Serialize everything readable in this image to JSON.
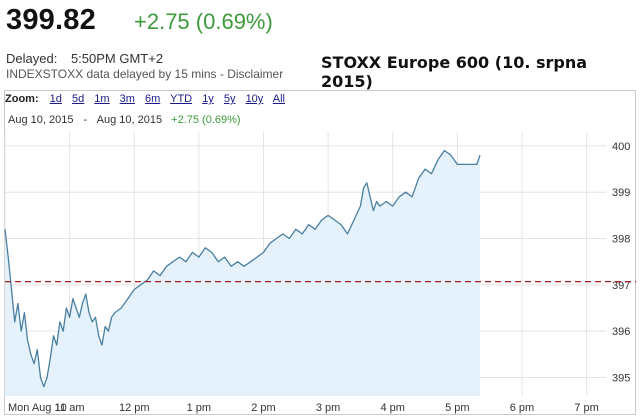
{
  "quote": {
    "price": "399.82",
    "change": "+2.75 (0.69%)",
    "delayed_label": "Delayed:",
    "delayed_time": "5:50PM GMT+2",
    "source_note": "INDEXSTOXX data delayed by 15 mins - Disclaimer"
  },
  "caption": "STOXX Europe 600 (10. srpna 2015)",
  "zoom": {
    "label": "Zoom:",
    "options": [
      "1d",
      "5d",
      "1m",
      "3m",
      "6m",
      "YTD",
      "1y",
      "5y",
      "10y",
      "All"
    ]
  },
  "range": {
    "start": "Aug 10, 2015",
    "separator": "-",
    "end": "Aug 10, 2015",
    "change": "+2.75 (0.69%)"
  },
  "colors": {
    "line": "#4a7fa0",
    "fill": "#e6f2fb",
    "positive": "#3c9a3c",
    "reference": "#a02020",
    "grid": "#e4e4e4"
  },
  "chart_data": {
    "type": "area",
    "x_ticks": [
      "Mon Aug 10",
      "11 am",
      "12 pm",
      "1 pm",
      "2 pm",
      "3 pm",
      "4 pm",
      "5 pm",
      "6 pm",
      "7 pm"
    ],
    "y_ticks": [
      395,
      396,
      397,
      398,
      399,
      400
    ],
    "ylim": [
      394.6,
      400.3
    ],
    "x_range_hours": [
      10,
      19.3
    ],
    "reference_line": 397.07,
    "grid": true,
    "y_axis_position": "right",
    "series": [
      {
        "x": [
          10.0,
          10.05,
          10.1,
          10.15,
          10.2,
          10.25,
          10.3,
          10.35,
          10.4,
          10.45,
          10.5,
          10.55,
          10.6,
          10.65,
          10.7,
          10.75,
          10.8,
          10.85,
          10.9,
          10.95,
          11.0,
          11.05,
          11.1,
          11.15,
          11.2,
          11.25,
          11.3,
          11.35,
          11.4,
          11.45,
          11.5,
          11.55,
          11.6,
          11.65,
          11.7,
          11.8,
          11.9,
          12.0,
          12.1,
          12.2,
          12.3,
          12.4,
          12.5,
          12.6,
          12.7,
          12.8,
          12.9,
          13.0,
          13.1,
          13.2,
          13.3,
          13.4,
          13.5,
          13.6,
          13.7,
          13.8,
          13.9,
          14.0,
          14.1,
          14.2,
          14.3,
          14.4,
          14.5,
          14.6,
          14.7,
          14.8,
          14.9,
          15.0,
          15.1,
          15.2,
          15.3,
          15.4,
          15.5,
          15.55,
          15.6,
          15.65,
          15.7,
          15.75,
          15.8,
          15.9,
          16.0,
          16.1,
          16.2,
          16.3,
          16.4,
          16.5,
          16.6,
          16.7,
          16.8,
          16.9,
          17.0,
          17.1,
          17.2,
          17.3,
          17.35
        ],
        "y": [
          398.2,
          397.6,
          396.9,
          396.2,
          396.6,
          396.0,
          396.4,
          395.8,
          395.5,
          395.3,
          395.6,
          395.0,
          394.8,
          395.0,
          395.4,
          395.9,
          395.7,
          396.2,
          396.0,
          396.5,
          396.3,
          396.7,
          396.5,
          396.3,
          396.6,
          396.8,
          396.4,
          396.2,
          396.3,
          395.9,
          395.7,
          396.1,
          396.0,
          396.3,
          396.4,
          396.5,
          396.7,
          396.9,
          397.0,
          397.1,
          397.3,
          397.2,
          397.4,
          397.5,
          397.6,
          397.5,
          397.7,
          397.6,
          397.8,
          397.7,
          397.5,
          397.6,
          397.4,
          397.5,
          397.4,
          397.5,
          397.6,
          397.7,
          397.9,
          398.0,
          398.1,
          398.0,
          398.2,
          398.1,
          398.3,
          398.2,
          398.4,
          398.5,
          398.4,
          398.3,
          398.1,
          398.4,
          398.7,
          399.1,
          399.2,
          398.9,
          398.6,
          398.8,
          398.7,
          398.8,
          398.7,
          398.9,
          399.0,
          398.9,
          399.3,
          399.5,
          399.4,
          399.7,
          399.9,
          399.8,
          399.6,
          399.6,
          399.6,
          399.6,
          399.8
        ]
      }
    ]
  }
}
